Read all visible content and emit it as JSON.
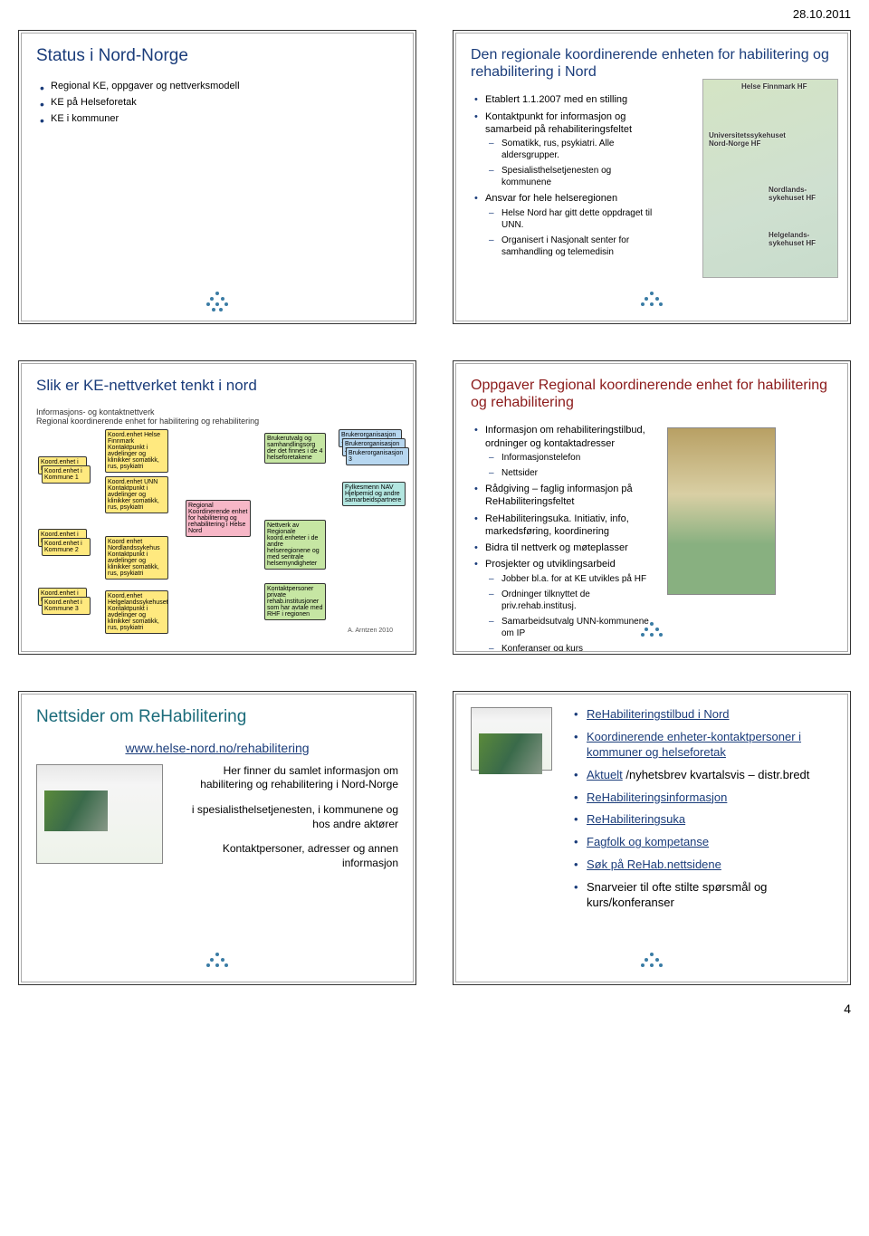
{
  "meta": {
    "date": "28.10.2011",
    "page_number": "4"
  },
  "slide1": {
    "title": "Status i Nord-Norge",
    "items": [
      "Regional KE, oppgaver og nettverksmodell",
      "KE på Helseforetak",
      "KE i kommuner"
    ]
  },
  "slide2": {
    "title": "Den regionale koordinerende enheten for habilitering og rehabilitering i Nord",
    "b1": "Etablert 1.1.2007 med en stilling",
    "b2": "Kontaktpunkt for informasjon og samarbeid på rehabiliteringsfeltet",
    "b2a": "Somatikk, rus, psykiatri. Alle aldersgrupper.",
    "b2b": "Spesialisthelsetjenesten og kommunene",
    "b3": "Ansvar for hele helseregionen",
    "b3a": "Helse Nord har gitt dette oppdraget til UNN.",
    "b3b": "Organisert i Nasjonalt senter for samhandling og telemedisin",
    "map": {
      "l1": "Helse Finnmark HF",
      "l2": "Universitetssykehuset Nord-Norge HF",
      "l3": "Nordlands-sykehuset HF",
      "l4": "Helgelands-sykehuset HF"
    }
  },
  "slide3": {
    "title": "Slik er KE-nettverket tenkt i nord",
    "caption_top": "Informasjons- og kontaktnettverk\nRegional koordinerende enhet for habilitering og rehabilitering",
    "boxes": {
      "k1": "Koord.enhet i Kommune 1",
      "k2": "Koord.enhet i Kommune 2",
      "k3": "Koord.enhet i Kommune 3",
      "hf1": "Koord.enhet Helse Finnmark Kontaktpunkt i avdelinger og klinikker somatikk, rus, psykiatri",
      "hf2": "Koord.enhet UNN Kontaktpunkt i avdelinger og klinikker somatikk, rus, psykiatri",
      "hf3": "Koord enhet Nordlandssykehus Kontaktpunkt i avdelinger og klinikker somatikk, rus, psykiatri",
      "hf4": "Koord.enhet Helgelandssykehuset Kontaktpunkt i avdelinger og klinikker somatikk, rus, psykiatri",
      "reg": "Regional Koordinerende enhet for habilitering og rehabilitering i Helse Nord",
      "bruker": "Brukerutvalg og samhandlingsorg der det finnes i de 4 helseforetakene",
      "nett": "Nettverk av Regionale koord.enheter i de andre helseregionene og med sentrale helsemyndigheter",
      "kontakt": "Kontaktpersoner private rehab.institusjoner som har avtale med RHF i regionen",
      "bo1": "Brukerorganisasjon 1",
      "bo2": "Brukerorganisasjon 2",
      "bo3": "Brukerorganisasjon 3",
      "fylke": "Fylkesmenn NAV Hjelpemid og andre samarbeidspartnere"
    },
    "credit": "A. Arntzen 2010"
  },
  "slide4": {
    "title": "Oppgaver Regional koordinerende enhet for habilitering og rehabilitering",
    "b1": "Informasjon om rehabiliteringstilbud, ordninger og kontaktadresser",
    "b1a": "Informasjonstelefon",
    "b1b": "Nettsider",
    "b2": "Rådgiving – faglig informasjon på ReHabiliteringsfeltet",
    "b3": "ReHabiliteringsuka. Initiativ, info, markedsføring, koordinering",
    "b4": "Bidra til nettverk og møteplasser",
    "b5": "Prosjekter og utviklingsarbeid",
    "b5a": "Jobber bl.a. for at KE utvikles på HF",
    "b5b": "Ordninger tilknyttet de priv.rehab.institusj.",
    "b5c": "Samarbeidsutvalg UNN-kommunene om IP",
    "b5d": "Konferanser og kurs"
  },
  "slide5": {
    "title": "Nettsider om ReHabilitering",
    "url": "www.helse-nord.no/rehabilitering",
    "p1": "Her finner du samlet informasjon om habilitering og rehabilitering i Nord-Norge",
    "p2": "i spesialisthelsetjenesten, i kommunene og hos andre aktører",
    "p3": "Kontaktpersoner, adresser og annen informasjon"
  },
  "slide6": {
    "items": [
      {
        "text": "ReHabiliteringstilbud i Nord",
        "link": true
      },
      {
        "text": "Koordinerende enheter-kontaktpersoner i kommuner og helseforetak",
        "link": true,
        "suffix": ""
      },
      {
        "text": "Aktuelt /nyhetsbrev kvartalsvis – distr.bredt",
        "linkpart": "Aktuelt"
      },
      {
        "text": "ReHabiliteringsinformasjon",
        "link": true
      },
      {
        "text": "ReHabiliteringsuka",
        "link": true
      },
      {
        "text": "Fagfolk og kompetanse",
        "link": true
      },
      {
        "text": "Søk på ReHab.nettsidene",
        "link": true
      },
      {
        "text": "Snarveier til ofte stilte spørsmål og kurs/konferanser"
      }
    ]
  }
}
